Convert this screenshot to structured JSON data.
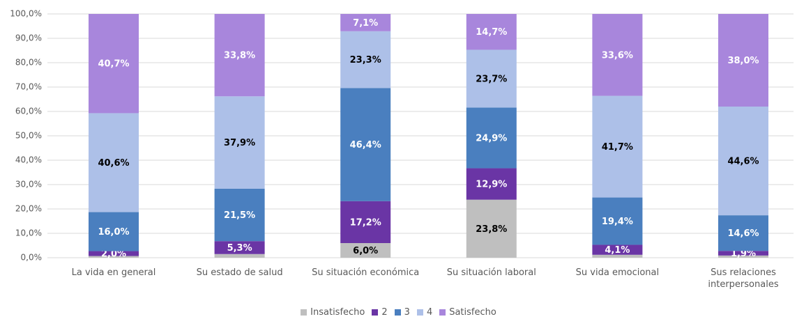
{
  "chart_data": {
    "type": "stacked_bar",
    "categories": [
      "La vida en general",
      "Su estado de salud",
      "Su situación económica",
      "Su situación laboral",
      "Su vida emocional",
      "Sus relaciones interpersonales"
    ],
    "series": [
      {
        "name": "Insatisfecho",
        "color": "#bfbfbf",
        "values": [
          0.7,
          1.5,
          6.0,
          23.8,
          1.2,
          0.9
        ],
        "value_labels": [
          null,
          null,
          "6,0%",
          "23,8%",
          null,
          null
        ]
      },
      {
        "name": "2",
        "color": "#6a35a5",
        "values": [
          2.0,
          5.3,
          17.2,
          12.9,
          4.1,
          1.9
        ],
        "value_labels": [
          "2,0%",
          "5,3%",
          "17,2%",
          "12,9%",
          "4,1%",
          "1,9%"
        ]
      },
      {
        "name": "3",
        "color": "#4a7fbf",
        "values": [
          16.0,
          21.5,
          46.4,
          24.9,
          19.4,
          14.6
        ],
        "value_labels": [
          "16,0%",
          "21,5%",
          "46,4%",
          "24,9%",
          "19,4%",
          "14,6%"
        ]
      },
      {
        "name": "4",
        "color": "#adc0e8",
        "values": [
          40.6,
          37.9,
          23.3,
          23.7,
          41.7,
          44.6
        ],
        "value_labels": [
          "40,6%",
          "37,9%",
          "23,3%",
          "23,7%",
          "41,7%",
          "44,6%"
        ]
      },
      {
        "name": "Satisfecho",
        "color": "#a886dc",
        "values": [
          40.7,
          33.8,
          7.1,
          14.7,
          33.6,
          38.0
        ],
        "value_labels": [
          "40,7%",
          "33,8%",
          "7,1%",
          "14,7%",
          "33,6%",
          "38,0%"
        ]
      }
    ],
    "ylim": [
      0,
      100
    ],
    "yticks": [
      {
        "value": 0,
        "label": "0,0%"
      },
      {
        "value": 10,
        "label": "10,0%"
      },
      {
        "value": 20,
        "label": "20,0%"
      },
      {
        "value": 30,
        "label": "30,0%"
      },
      {
        "value": 40,
        "label": "40,0%"
      },
      {
        "value": 50,
        "label": "50,0%"
      },
      {
        "value": 60,
        "label": "60,0%"
      },
      {
        "value": 70,
        "label": "70,0%"
      },
      {
        "value": 80,
        "label": "80,0%"
      },
      {
        "value": 90,
        "label": "90,0%"
      },
      {
        "value": 100,
        "label": "100,0%"
      }
    ],
    "grid": true,
    "legend": "bottom"
  }
}
